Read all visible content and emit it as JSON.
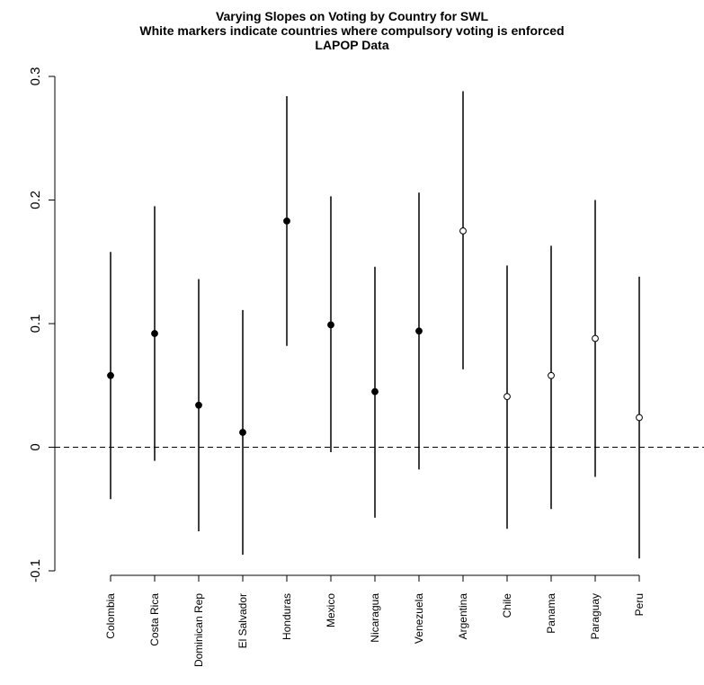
{
  "chart_data": {
    "type": "scatter",
    "title_lines": [
      "Varying Slopes on Voting by Country for SWL",
      "White markers indicate countries where compulsory voting is enforced",
      "LAPOP Data"
    ],
    "xlabel": "",
    "ylabel": "",
    "ylim": [
      -0.1,
      0.3
    ],
    "y_ticks": [
      -0.1,
      0.0,
      0.1,
      0.2,
      0.3
    ],
    "y_tick_labels": [
      "-0.1",
      "0",
      "0.1",
      "0.2",
      "0.3"
    ],
    "reference_line": {
      "y": 0,
      "style": "dashed"
    },
    "grid": false,
    "legend": "none",
    "categories": [
      "Colombia",
      "Costa Rica",
      "Dominican Rep",
      "El Salvador",
      "Honduras",
      "Mexico",
      "Nicaragua",
      "Venezuela",
      "Argentina",
      "Chile",
      "Panama",
      "Paraguay",
      "Peru"
    ],
    "estimates": [
      0.058,
      0.092,
      0.034,
      0.012,
      0.183,
      0.099,
      0.045,
      0.094,
      0.175,
      0.041,
      0.058,
      0.088,
      0.024
    ],
    "lower": [
      -0.042,
      -0.011,
      -0.068,
      -0.087,
      0.082,
      -0.004,
      -0.057,
      -0.018,
      0.063,
      -0.066,
      -0.05,
      -0.024,
      -0.09
    ],
    "upper": [
      0.158,
      0.195,
      0.136,
      0.111,
      0.284,
      0.203,
      0.146,
      0.206,
      0.288,
      0.147,
      0.163,
      0.2,
      0.138
    ],
    "marker_fill": [
      "black",
      "black",
      "black",
      "black",
      "black",
      "black",
      "black",
      "black",
      "white",
      "white",
      "white",
      "white",
      "white"
    ],
    "colors": {
      "ink": "#000000",
      "background": "#ffffff"
    }
  }
}
